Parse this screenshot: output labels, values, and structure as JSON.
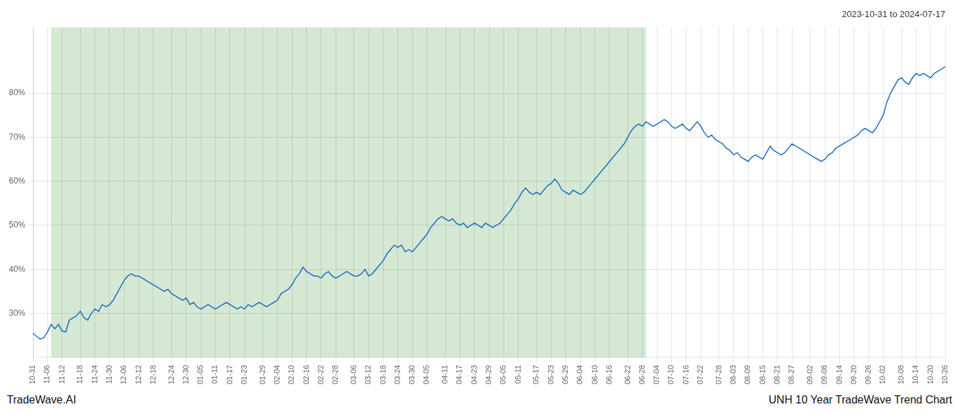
{
  "chart_data": {
    "type": "line",
    "title": "2023-10-31 to 2024-07-17",
    "annotations": [
      "TradeWave.AI",
      "UNH 10 Year TradeWave Trend Chart"
    ],
    "color": "#1a6bbf",
    "shaded_region": {
      "start": 5,
      "end": 168,
      "color": "#d4e8d4"
    },
    "grid": true,
    "ylim": [
      20,
      95
    ],
    "yticks": [
      {
        "value": 30,
        "label": "30%"
      },
      {
        "value": 40,
        "label": "40%"
      },
      {
        "value": 50,
        "label": "50%"
      },
      {
        "value": 60,
        "label": "60%"
      },
      {
        "value": 70,
        "label": "70%"
      },
      {
        "value": 80,
        "label": "80%"
      }
    ],
    "categories": [
      "10-31",
      null,
      null,
      null,
      "11-06",
      null,
      null,
      null,
      "11-12",
      null,
      null,
      null,
      null,
      "11-18",
      null,
      null,
      null,
      "11-24",
      null,
      null,
      null,
      "11-30",
      null,
      null,
      null,
      "12-06",
      null,
      null,
      null,
      "12-12",
      null,
      null,
      null,
      "12-18",
      null,
      null,
      null,
      null,
      "12-24",
      null,
      null,
      null,
      "12-30",
      null,
      null,
      null,
      "01-05",
      null,
      null,
      null,
      "01-11",
      null,
      null,
      null,
      "01-17",
      null,
      null,
      null,
      "01-23",
      null,
      null,
      null,
      null,
      "01-29",
      null,
      null,
      null,
      "02-04",
      null,
      null,
      null,
      "02-10",
      null,
      null,
      null,
      "02-16",
      null,
      null,
      null,
      "02-22",
      null,
      null,
      null,
      "02-28",
      null,
      null,
      null,
      null,
      "03-06",
      null,
      null,
      null,
      "03-12",
      null,
      null,
      null,
      "03-18",
      null,
      null,
      null,
      "03-24",
      null,
      null,
      null,
      "03-30",
      null,
      null,
      null,
      "04-05",
      null,
      null,
      null,
      null,
      "04-11",
      null,
      null,
      null,
      "04-17",
      null,
      null,
      null,
      "04-23",
      null,
      null,
      null,
      "04-29",
      null,
      null,
      null,
      "05-05",
      null,
      null,
      null,
      "05-11",
      null,
      null,
      null,
      null,
      "05-17",
      null,
      null,
      null,
      "05-23",
      null,
      null,
      null,
      "05-29",
      null,
      null,
      null,
      "06-04",
      null,
      null,
      null,
      "06-10",
      null,
      null,
      null,
      "06-16",
      null,
      null,
      null,
      null,
      "06-22",
      null,
      null,
      null,
      "06-28",
      null,
      null,
      null,
      "07-04",
      null,
      null,
      null,
      "07-10",
      null,
      null,
      null,
      "07-16",
      null,
      null,
      null,
      "07-22",
      null,
      null,
      null,
      null,
      "07-28",
      null,
      null,
      null,
      "08-03",
      null,
      null,
      null,
      "08-09",
      null,
      null,
      null,
      "08-15",
      null,
      null,
      null,
      "08-21",
      null,
      null,
      null,
      "08-27",
      null,
      null,
      null,
      null,
      "09-02",
      null,
      null,
      null,
      "09-08",
      null,
      null,
      null,
      "09-14",
      null,
      null,
      null,
      "09-20",
      null,
      null,
      null,
      "09-26",
      null,
      null,
      null,
      "10-02",
      null,
      null,
      null,
      null,
      "10-08",
      null,
      null,
      null,
      "10-14",
      null,
      null,
      null,
      "10-20",
      null,
      null,
      null,
      "10-26"
    ],
    "values": [
      25.5,
      24.8,
      24.2,
      24.5,
      25.8,
      27.5,
      26.5,
      27.5,
      26.0,
      25.8,
      28.5,
      29.0,
      29.5,
      30.5,
      29.0,
      28.5,
      30.0,
      31.0,
      30.5,
      32.0,
      31.5,
      32.0,
      33.0,
      34.5,
      36.0,
      37.5,
      38.5,
      39.0,
      38.5,
      38.5,
      38.0,
      37.5,
      37.0,
      36.5,
      36.0,
      35.5,
      35.0,
      35.5,
      34.5,
      34.0,
      33.5,
      33.0,
      33.5,
      32.0,
      32.5,
      31.5,
      31.0,
      31.5,
      32.0,
      31.5,
      31.0,
      31.5,
      32.0,
      32.5,
      32.0,
      31.5,
      31.0,
      31.5,
      31.0,
      32.0,
      31.5,
      32.0,
      32.5,
      32.0,
      31.5,
      32.0,
      32.5,
      33.0,
      34.5,
      35.0,
      35.5,
      36.5,
      38.0,
      39.0,
      40.5,
      39.5,
      39.0,
      38.5,
      38.5,
      38.0,
      39.0,
      39.5,
      38.5,
      38.0,
      38.5,
      39.0,
      39.5,
      39.0,
      38.5,
      38.5,
      39.0,
      40.0,
      38.5,
      39.0,
      40.0,
      41.0,
      42.0,
      43.5,
      44.5,
      45.5,
      45.0,
      45.5,
      44.0,
      44.5,
      44.0,
      45.0,
      46.0,
      47.0,
      48.0,
      49.5,
      50.5,
      51.5,
      52.0,
      51.5,
      51.0,
      51.5,
      50.5,
      50.0,
      50.5,
      49.5,
      50.0,
      50.5,
      50.0,
      49.5,
      50.5,
      50.0,
      49.5,
      50.0,
      50.5,
      51.5,
      52.5,
      53.5,
      55.0,
      56.0,
      57.5,
      58.5,
      57.5,
      57.0,
      57.5,
      57.0,
      58.0,
      59.0,
      59.5,
      60.5,
      59.5,
      58.0,
      57.5,
      57.0,
      58.0,
      57.5,
      57.0,
      57.5,
      58.5,
      59.5,
      60.5,
      61.5,
      62.5,
      63.5,
      64.5,
      65.5,
      66.5,
      67.5,
      68.5,
      70.0,
      71.5,
      72.5,
      73.0,
      72.5,
      73.5,
      73.0,
      72.5,
      73.0,
      73.5,
      74.0,
      73.5,
      72.5,
      72.0,
      72.5,
      73.0,
      72.0,
      71.5,
      72.5,
      73.5,
      72.5,
      71.0,
      70.0,
      70.5,
      69.5,
      69.0,
      68.5,
      67.5,
      67.0,
      66.0,
      66.5,
      65.5,
      65.0,
      64.5,
      65.5,
      66.0,
      65.5,
      65.0,
      66.5,
      68.0,
      67.0,
      66.5,
      66.0,
      66.5,
      67.5,
      68.5,
      68.0,
      67.5,
      67.0,
      66.5,
      66.0,
      65.5,
      65.0,
      64.5,
      65.0,
      66.0,
      66.5,
      67.5,
      68.0,
      68.5,
      69.0,
      69.5,
      70.0,
      70.5,
      71.5,
      72.0,
      71.5,
      71.0,
      72.0,
      73.5,
      75.0,
      78.0,
      80.0,
      81.5,
      83.0,
      83.5,
      82.5,
      82.0,
      83.5,
      84.5,
      84.0,
      84.5,
      84.0,
      83.5,
      84.5,
      85.0,
      85.5,
      86.0
    ]
  }
}
